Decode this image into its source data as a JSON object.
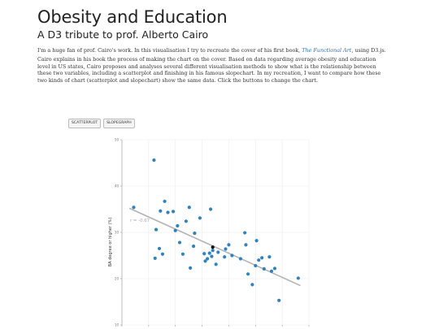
{
  "page": {
    "title": "Obesity and Education",
    "subtitle": "A D3 tribute to prof. Alberto Cairo",
    "intro_before": "I'm a huge fan of prof. Cairo's work. In this visualisation I try to recreate the cover of his first book, ",
    "intro_link": "The Functional Art",
    "intro_after": ", using D3.js.",
    "description": "Cairo explains in his book the process of making the chart on the cover. Based on data regarding average obesity and education level in US states, Cairo proposes and analyses several different visualisation methods to show what is the relationship between these two variables, including a scatterplot and finishing in his famous slopechart. In my recreation, I want to compare how these two kinds of chart (scatterplot and slopechart) show the same data. Click the buttons to change the chart."
  },
  "buttons": {
    "scatterplot": "SCATTERPLOT",
    "slopegraph": "SLOPEGRAPH"
  },
  "colors": {
    "dot": "#3182bd",
    "highlight": "#111111",
    "trend": "#b3b3b3",
    "grid": "#ececec"
  },
  "chart_data": {
    "type": "scatter",
    "ylabel": "BA degree or higher (%)",
    "xlabel": "",
    "y_ticks": [
      "10",
      "20",
      "30",
      "40",
      "50"
    ],
    "xlim": [
      18.5,
      36
    ],
    "ylim": [
      10,
      50
    ],
    "annotation": "r = -0.67",
    "trend": {
      "from": [
        19.2,
        35.2
      ],
      "to": [
        35.2,
        18.5
      ]
    },
    "points": [
      [
        19.6,
        35.4
      ],
      [
        21.5,
        45.6
      ],
      [
        21.6,
        24.4
      ],
      [
        21.7,
        30.6
      ],
      [
        22.0,
        26.5
      ],
      [
        22.1,
        34.6
      ],
      [
        22.3,
        25.3
      ],
      [
        22.5,
        36.7
      ],
      [
        22.8,
        34.3
      ],
      [
        23.3,
        34.5
      ],
      [
        23.5,
        30.4
      ],
      [
        23.7,
        31.4
      ],
      [
        23.9,
        27.8
      ],
      [
        24.2,
        25.3
      ],
      [
        24.5,
        32.4
      ],
      [
        24.8,
        35.4
      ],
      [
        24.9,
        22.3
      ],
      [
        25.2,
        27.0
      ],
      [
        25.3,
        29.8
      ],
      [
        25.8,
        33.1
      ],
      [
        26.2,
        25.4
      ],
      [
        26.3,
        23.8
      ],
      [
        26.5,
        24.3
      ],
      [
        26.7,
        25.5
      ],
      [
        26.8,
        35.0
      ],
      [
        26.9,
        24.8
      ],
      [
        27.0,
        26.1
      ],
      [
        27.3,
        23.1
      ],
      [
        27.5,
        25.7
      ],
      [
        28.1,
        24.7
      ],
      [
        28.2,
        26.4
      ],
      [
        28.5,
        27.3
      ],
      [
        28.8,
        25.0
      ],
      [
        29.6,
        24.3
      ],
      [
        30.0,
        29.9
      ],
      [
        30.1,
        27.3
      ],
      [
        30.3,
        21.0
      ],
      [
        30.7,
        18.7
      ],
      [
        31.0,
        22.8
      ],
      [
        31.1,
        28.2
      ],
      [
        31.3,
        24.0
      ],
      [
        31.6,
        24.5
      ],
      [
        31.8,
        22.1
      ],
      [
        32.3,
        24.7
      ],
      [
        32.5,
        21.6
      ],
      [
        32.8,
        22.2
      ],
      [
        33.2,
        15.3
      ],
      [
        35.0,
        20.1
      ],
      [
        27.0,
        26.8
      ]
    ],
    "highlight_index": 48
  }
}
